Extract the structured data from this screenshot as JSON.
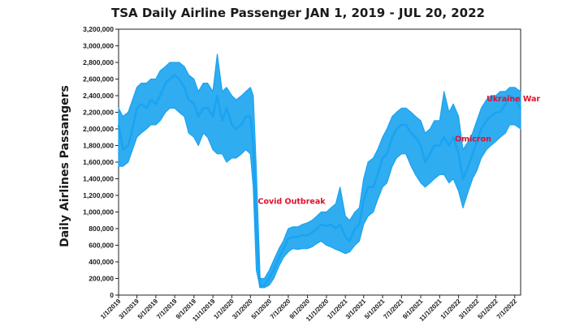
{
  "chart_data": {
    "type": "line",
    "title": "TSA Daily Airline Passenger JAN 1, 2019 - JUL 20, 2022",
    "xlabel": "",
    "ylabel": "Daily Airlines Passangers",
    "ylim": [
      0,
      3200000
    ],
    "yticks": [
      "0",
      "200,000",
      "400,000",
      "600,000",
      "800,000",
      "1,000,000",
      "1,200,000",
      "1,400,000",
      "1,600,000",
      "1,800,000",
      "2,000,000",
      "2,200,000",
      "2,400,000",
      "2,600,000",
      "2,800,000",
      "3,000,000",
      "3,200,000"
    ],
    "xlim": [
      "2019-01-01",
      "2022-07-20"
    ],
    "xticks": [
      "1/1/2019",
      "3/1/2019",
      "5/1/2019",
      "7/1/2019",
      "9/1/2019",
      "11/1/2019",
      "1/1/2020",
      "3/1/2020",
      "5/1/2020",
      "7/1/2020",
      "9/1/2020",
      "11/1/2020",
      "1/1/2021",
      "3/1/2021",
      "5/1/2021",
      "7/1/2021",
      "9/1/2021",
      "11/1/2021",
      "1/1/2022",
      "3/1/2022",
      "5/1/2022",
      "7/1/2022"
    ],
    "grid": false,
    "series": [
      {
        "color": "#1aa3f0",
        "x": [
          "2019-01-01",
          "2019-01-15",
          "2019-02-01",
          "2019-02-15",
          "2019-03-01",
          "2019-03-15",
          "2019-04-01",
          "2019-04-15",
          "2019-05-01",
          "2019-05-15",
          "2019-06-01",
          "2019-06-15",
          "2019-07-01",
          "2019-07-15",
          "2019-08-01",
          "2019-08-15",
          "2019-09-01",
          "2019-09-15",
          "2019-10-01",
          "2019-10-15",
          "2019-11-01",
          "2019-11-15",
          "2019-12-01",
          "2019-12-15",
          "2020-01-01",
          "2020-01-15",
          "2020-02-01",
          "2020-02-15",
          "2020-03-01",
          "2020-03-10",
          "2020-03-20",
          "2020-04-01",
          "2020-04-15",
          "2020-05-01",
          "2020-05-15",
          "2020-06-01",
          "2020-06-15",
          "2020-07-01",
          "2020-07-15",
          "2020-08-01",
          "2020-08-15",
          "2020-09-01",
          "2020-09-15",
          "2020-10-01",
          "2020-10-15",
          "2020-11-01",
          "2020-11-15",
          "2020-12-01",
          "2020-12-15",
          "2021-01-01",
          "2021-01-15",
          "2021-02-01",
          "2021-02-15",
          "2021-03-01",
          "2021-03-15",
          "2021-04-01",
          "2021-04-15",
          "2021-05-01",
          "2021-05-15",
          "2021-06-01",
          "2021-06-15",
          "2021-07-01",
          "2021-07-15",
          "2021-08-01",
          "2021-08-15",
          "2021-09-01",
          "2021-09-15",
          "2021-10-01",
          "2021-10-15",
          "2021-11-01",
          "2021-11-15",
          "2021-12-01",
          "2021-12-15",
          "2022-01-01",
          "2022-01-15",
          "2022-02-01",
          "2022-02-15",
          "2022-03-01",
          "2022-03-15",
          "2022-04-01",
          "2022-04-15",
          "2022-05-01",
          "2022-05-15",
          "2022-06-01",
          "2022-06-15",
          "2022-07-01",
          "2022-07-20"
        ],
        "y": [
          2050000,
          1750000,
          1800000,
          2000000,
          2250000,
          2300000,
          2250000,
          2350000,
          2300000,
          2400000,
          2550000,
          2600000,
          2650000,
          2600000,
          2500000,
          2350000,
          2300000,
          2150000,
          2250000,
          2250000,
          2150000,
          2400000,
          2100000,
          2250000,
          2050000,
          2000000,
          2050000,
          2150000,
          2150000,
          1800000,
          800000,
          100000,
          120000,
          200000,
          300000,
          450000,
          550000,
          680000,
          700000,
          700000,
          720000,
          720000,
          750000,
          800000,
          850000,
          830000,
          850000,
          800000,
          850000,
          700000,
          650000,
          800000,
          850000,
          1150000,
          1300000,
          1300000,
          1450000,
          1650000,
          1700000,
          1900000,
          2000000,
          2050000,
          2050000,
          1950000,
          1900000,
          1800000,
          1600000,
          1700000,
          1800000,
          1800000,
          1900000,
          1800000,
          1900000,
          1700000,
          1400000,
          1550000,
          1700000,
          1850000,
          2000000,
          2100000,
          2150000,
          2200000,
          2200000,
          2300000,
          2400000,
          2350000,
          2250000
        ],
        "range_low": [
          1550000,
          1550000,
          1600000,
          1750000,
          1900000,
          1950000,
          2000000,
          2050000,
          2050000,
          2100000,
          2200000,
          2250000,
          2250000,
          2200000,
          2150000,
          1950000,
          1900000,
          1800000,
          1950000,
          1900000,
          1750000,
          1700000,
          1700000,
          1600000,
          1650000,
          1650000,
          1700000,
          1750000,
          1700000,
          1300000,
          300000,
          90000,
          90000,
          120000,
          200000,
          350000,
          450000,
          520000,
          560000,
          550000,
          560000,
          560000,
          580000,
          620000,
          650000,
          600000,
          580000,
          550000,
          530000,
          500000,
          520000,
          600000,
          650000,
          850000,
          950000,
          1000000,
          1150000,
          1300000,
          1350000,
          1550000,
          1650000,
          1700000,
          1700000,
          1550000,
          1450000,
          1350000,
          1300000,
          1350000,
          1400000,
          1450000,
          1450000,
          1350000,
          1400000,
          1250000,
          1050000,
          1250000,
          1400000,
          1500000,
          1650000,
          1750000,
          1800000,
          1850000,
          1900000,
          1950000,
          2050000,
          2050000,
          2000000
        ],
        "range_high": [
          2250000,
          2150000,
          2200000,
          2350000,
          2500000,
          2550000,
          2550000,
          2600000,
          2600000,
          2700000,
          2750000,
          2800000,
          2800000,
          2800000,
          2750000,
          2650000,
          2600000,
          2450000,
          2550000,
          2550000,
          2450000,
          2900000,
          2450000,
          2500000,
          2400000,
          2350000,
          2400000,
          2450000,
          2500000,
          2400000,
          1500000,
          200000,
          200000,
          300000,
          420000,
          560000,
          650000,
          800000,
          820000,
          820000,
          850000,
          870000,
          900000,
          950000,
          1000000,
          1000000,
          1050000,
          1100000,
          1300000,
          950000,
          900000,
          1000000,
          1050000,
          1400000,
          1600000,
          1650000,
          1750000,
          1900000,
          2000000,
          2150000,
          2200000,
          2250000,
          2250000,
          2200000,
          2150000,
          2100000,
          1950000,
          2000000,
          2100000,
          2100000,
          2450000,
          2200000,
          2300000,
          2150000,
          1750000,
          1850000,
          1950000,
          2100000,
          2250000,
          2350000,
          2400000,
          2400000,
          2450000,
          2450000,
          2500000,
          2500000,
          2450000
        ]
      }
    ],
    "annotations": [
      {
        "text": "Covid Outbreak",
        "x": "2020-03-25",
        "y": 1100000,
        "color": "#e0102a"
      },
      {
        "text": "Omicron",
        "x": "2021-12-20",
        "y": 1850000,
        "color": "#e0102a"
      },
      {
        "text": "Ukraine War",
        "x": "2022-04-01",
        "y": 2330000,
        "color": "#e0102a"
      }
    ]
  }
}
